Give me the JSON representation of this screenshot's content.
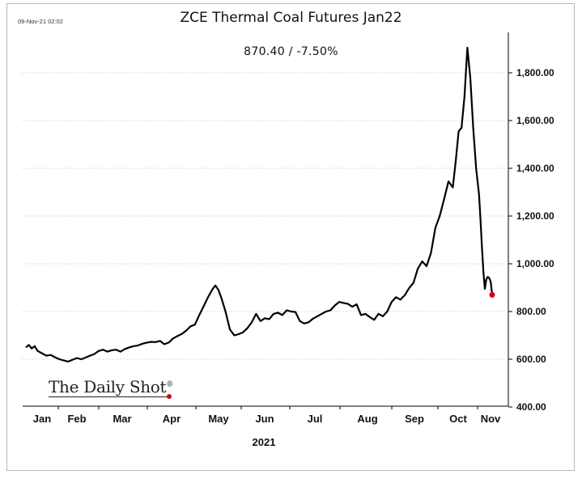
{
  "timestamp": "09-Nov-21 02:02",
  "title": "ZCE Thermal Coal Futures Jan22",
  "subtitle": "870.40  /  -7.50%",
  "brand": "The Daily Shot",
  "brand_mark": "®",
  "colors": {
    "line": "#000000",
    "last_point": "#d0021b",
    "grid": "#c8c8c8"
  },
  "chart_data": {
    "type": "line",
    "title": "ZCE Thermal Coal Futures Jan22",
    "subtitle": "870.40 / -7.50%",
    "xlabel": "2021",
    "ylabel": "",
    "ylim": [
      400,
      1950
    ],
    "yticks": [
      400,
      600,
      800,
      1000,
      1200,
      1400,
      1600,
      1800
    ],
    "ytick_labels": [
      "400.00",
      "600.00",
      "800.00",
      "1,000.00",
      "1,200.00",
      "1,400.00",
      "1,600.00",
      "1,800.00"
    ],
    "y_axis_position": "right",
    "grid": "horizontal dotted",
    "xticks": [
      "Jan",
      "Feb",
      "Mar",
      "Apr",
      "May",
      "Jun",
      "Jul",
      "Aug",
      "Sep",
      "Oct",
      "Nov"
    ],
    "x_range": [
      "2021-01-01",
      "2021-11-12"
    ],
    "series": [
      {
        "points": [
          [
            "2021-01-01",
            650
          ],
          [
            "2021-01-03",
            660
          ],
          [
            "2021-01-05",
            645
          ],
          [
            "2021-01-07",
            655
          ],
          [
            "2021-01-09",
            635
          ],
          [
            "2021-01-12",
            625
          ],
          [
            "2021-01-15",
            615
          ],
          [
            "2021-01-18",
            618
          ],
          [
            "2021-01-21",
            608
          ],
          [
            "2021-01-24",
            600
          ],
          [
            "2021-01-27",
            595
          ],
          [
            "2021-01-30",
            590
          ],
          [
            "2021-02-02",
            598
          ],
          [
            "2021-02-05",
            605
          ],
          [
            "2021-02-08",
            600
          ],
          [
            "2021-02-11",
            607
          ],
          [
            "2021-02-14",
            615
          ],
          [
            "2021-02-17",
            622
          ],
          [
            "2021-02-20",
            635
          ],
          [
            "2021-02-23",
            640
          ],
          [
            "2021-02-26",
            632
          ],
          [
            "2021-03-01",
            638
          ],
          [
            "2021-03-04",
            640
          ],
          [
            "2021-03-07",
            632
          ],
          [
            "2021-03-10",
            643
          ],
          [
            "2021-03-13",
            650
          ],
          [
            "2021-03-16",
            655
          ],
          [
            "2021-03-19",
            658
          ],
          [
            "2021-03-22",
            665
          ],
          [
            "2021-03-25",
            670
          ],
          [
            "2021-03-28",
            673
          ],
          [
            "2021-03-31",
            672
          ],
          [
            "2021-04-03",
            677
          ],
          [
            "2021-04-06",
            663
          ],
          [
            "2021-04-09",
            670
          ],
          [
            "2021-04-12",
            687
          ],
          [
            "2021-04-15",
            697
          ],
          [
            "2021-04-18",
            706
          ],
          [
            "2021-04-21",
            720
          ],
          [
            "2021-04-24",
            738
          ],
          [
            "2021-04-27",
            745
          ],
          [
            "2021-04-30",
            785
          ],
          [
            "2021-05-03",
            822
          ],
          [
            "2021-05-06",
            860
          ],
          [
            "2021-05-09",
            893
          ],
          [
            "2021-05-11",
            909
          ],
          [
            "2021-05-13",
            892
          ],
          [
            "2021-05-15",
            860
          ],
          [
            "2021-05-18",
            800
          ],
          [
            "2021-05-21",
            725
          ],
          [
            "2021-05-24",
            700
          ],
          [
            "2021-05-27",
            705
          ],
          [
            "2021-05-30",
            713
          ],
          [
            "2021-06-02",
            730
          ],
          [
            "2021-06-05",
            755
          ],
          [
            "2021-06-08",
            790
          ],
          [
            "2021-06-11",
            760
          ],
          [
            "2021-06-14",
            772
          ],
          [
            "2021-06-17",
            768
          ],
          [
            "2021-06-20",
            790
          ],
          [
            "2021-06-23",
            795
          ],
          [
            "2021-06-26",
            785
          ],
          [
            "2021-06-29",
            805
          ],
          [
            "2021-07-02",
            800
          ],
          [
            "2021-07-05",
            798
          ],
          [
            "2021-07-08",
            760
          ],
          [
            "2021-07-11",
            750
          ],
          [
            "2021-07-14",
            755
          ],
          [
            "2021-07-17",
            770
          ],
          [
            "2021-07-20",
            780
          ],
          [
            "2021-07-23",
            790
          ],
          [
            "2021-07-26",
            800
          ],
          [
            "2021-07-29",
            805
          ],
          [
            "2021-08-01",
            825
          ],
          [
            "2021-08-04",
            840
          ],
          [
            "2021-08-07",
            836
          ],
          [
            "2021-08-10",
            832
          ],
          [
            "2021-08-13",
            820
          ],
          [
            "2021-08-16",
            830
          ],
          [
            "2021-08-19",
            785
          ],
          [
            "2021-08-22",
            790
          ],
          [
            "2021-08-25",
            777
          ],
          [
            "2021-08-28",
            765
          ],
          [
            "2021-08-31",
            790
          ],
          [
            "2021-09-03",
            780
          ],
          [
            "2021-09-06",
            800
          ],
          [
            "2021-09-09",
            840
          ],
          [
            "2021-09-12",
            860
          ],
          [
            "2021-09-15",
            850
          ],
          [
            "2021-09-18",
            868
          ],
          [
            "2021-09-21",
            898
          ],
          [
            "2021-09-24",
            920
          ],
          [
            "2021-09-27",
            980
          ],
          [
            "2021-09-30",
            1010
          ],
          [
            "2021-10-03",
            990
          ],
          [
            "2021-10-06",
            1045
          ],
          [
            "2021-10-09",
            1150
          ],
          [
            "2021-10-12",
            1200
          ],
          [
            "2021-10-15",
            1270
          ],
          [
            "2021-10-18",
            1345
          ],
          [
            "2021-10-21",
            1320
          ],
          [
            "2021-10-23",
            1430
          ],
          [
            "2021-10-25",
            1555
          ],
          [
            "2021-10-27",
            1570
          ],
          [
            "2021-10-29",
            1700
          ],
          [
            "2021-10-31",
            1905
          ],
          [
            "2021-11-02",
            1780
          ],
          [
            "2021-11-04",
            1570
          ],
          [
            "2021-11-06",
            1400
          ],
          [
            "2021-11-08",
            1290
          ],
          [
            "2021-11-09",
            1185
          ],
          [
            "2021-11-10",
            1070
          ],
          [
            "2021-11-11",
            965
          ],
          [
            "2021-11-12",
            895
          ],
          [
            "2021-11-13",
            935
          ],
          [
            "2021-11-14",
            945
          ],
          [
            "2021-11-15",
            940
          ],
          [
            "2021-11-16",
            925
          ],
          [
            "2021-11-17",
            870
          ]
        ]
      }
    ],
    "last_value": 870.4,
    "change_pct": -7.5
  }
}
